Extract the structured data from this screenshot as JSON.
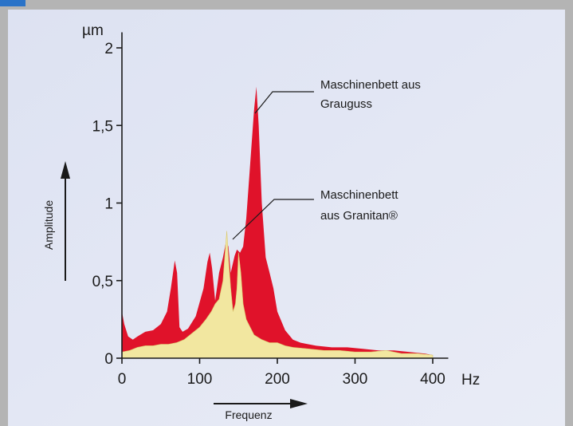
{
  "chart_data": {
    "type": "area",
    "x_unit": "Hz",
    "y_unit": "µm",
    "xlabel": "Frequenz",
    "ylabel": "Amplitude",
    "xlim": [
      0,
      420
    ],
    "ylim": [
      0,
      2.1
    ],
    "x_ticks": [
      {
        "value": 0,
        "label": "0"
      },
      {
        "value": 100,
        "label": "100"
      },
      {
        "value": 200,
        "label": "200"
      },
      {
        "value": 300,
        "label": "300"
      },
      {
        "value": 400,
        "label": "400"
      }
    ],
    "y_ticks": [
      {
        "value": 0,
        "label": "0"
      },
      {
        "value": 0.5,
        "label": "0,5"
      },
      {
        "value": 1,
        "label": "1"
      },
      {
        "value": 1.5,
        "label": "1,5"
      },
      {
        "value": 2,
        "label": "2"
      }
    ],
    "series": [
      {
        "name": "Maschinenbett aus Grauguss",
        "name_lines": [
          "Maschinenbett aus",
          "Grauguss"
        ],
        "color": "#e0122a",
        "x": [
          0,
          3,
          8,
          14,
          20,
          30,
          40,
          50,
          58,
          63,
          68,
          71,
          74,
          78,
          85,
          95,
          105,
          110,
          113,
          116,
          120,
          125,
          130,
          134,
          137,
          140,
          145,
          148,
          152,
          156,
          160,
          165,
          170,
          173,
          176,
          180,
          185,
          190,
          195,
          200,
          210,
          220,
          230,
          250,
          270,
          290,
          310,
          330,
          350,
          370,
          390,
          400
        ],
        "y": [
          0.3,
          0.22,
          0.14,
          0.12,
          0.14,
          0.17,
          0.18,
          0.22,
          0.3,
          0.45,
          0.63,
          0.55,
          0.2,
          0.17,
          0.19,
          0.27,
          0.45,
          0.62,
          0.68,
          0.58,
          0.37,
          0.55,
          0.65,
          0.75,
          0.72,
          0.55,
          0.66,
          0.7,
          0.68,
          0.72,
          0.9,
          1.25,
          1.6,
          1.75,
          1.5,
          1.0,
          0.65,
          0.55,
          0.45,
          0.3,
          0.18,
          0.12,
          0.1,
          0.08,
          0.07,
          0.07,
          0.06,
          0.05,
          0.05,
          0.04,
          0.03,
          0.02
        ]
      },
      {
        "name": "Maschinenbett aus Granitan®",
        "name_lines": [
          "Maschinenbett",
          "aus Granitan®"
        ],
        "color": "#f2e7a0",
        "x": [
          0,
          10,
          20,
          30,
          40,
          50,
          60,
          70,
          80,
          90,
          100,
          108,
          115,
          120,
          125,
          130,
          133,
          135,
          137,
          140,
          143,
          146,
          148,
          150,
          153,
          156,
          160,
          165,
          170,
          180,
          190,
          200,
          210,
          220,
          240,
          260,
          280,
          300,
          320,
          340,
          360,
          380,
          400
        ],
        "y": [
          0.04,
          0.05,
          0.07,
          0.08,
          0.08,
          0.09,
          0.09,
          0.1,
          0.12,
          0.16,
          0.2,
          0.25,
          0.3,
          0.35,
          0.38,
          0.5,
          0.7,
          0.82,
          0.65,
          0.45,
          0.3,
          0.35,
          0.45,
          0.68,
          0.55,
          0.35,
          0.25,
          0.2,
          0.15,
          0.12,
          0.1,
          0.1,
          0.08,
          0.07,
          0.06,
          0.05,
          0.05,
          0.04,
          0.04,
          0.05,
          0.03,
          0.03,
          0.02
        ]
      }
    ]
  }
}
